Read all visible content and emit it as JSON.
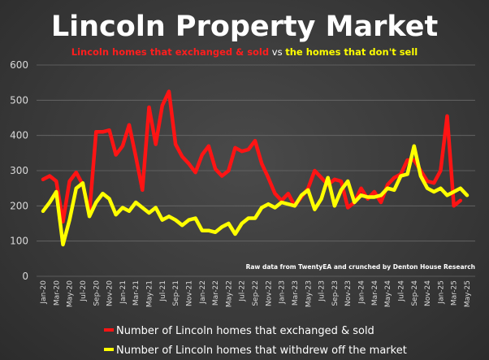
{
  "chart_data": {
    "type": "line",
    "title": "Lincoln Property Market",
    "subtitle": {
      "part1": "Lincoln homes that exchanged & sold",
      "part2": " vs ",
      "part3": "the homes that don't sell"
    },
    "credit": "Raw data from TwentyEA and crunched by Denton House Research",
    "ylim": [
      0,
      600
    ],
    "yticks": [
      "0",
      "100",
      "200",
      "300",
      "400",
      "500",
      "600"
    ],
    "x_tick_labels": [
      "Jan-20",
      "Mar-20",
      "May-20",
      "Jul-20",
      "Sep-20",
      "Nov-20",
      "Jan-21",
      "Mar-21",
      "May-21",
      "Jul-21",
      "Sep-21",
      "Nov-21",
      "Jan-22",
      "Mar-22",
      "May-22",
      "Jul-22",
      "Sep-22",
      "Nov-22",
      "Jan-23",
      "Mar-23",
      "May-23",
      "Jul-23",
      "Sep-23",
      "Nov-23",
      "Jan-24",
      "Mar-24",
      "May-24",
      "Jul-24",
      "Sep-24",
      "Nov-24",
      "Jan-25",
      "Mar-25",
      "May-25"
    ],
    "series": [
      {
        "name": "Number of Lincoln homes that exchanged & sold",
        "color": "#ff1414",
        "values": [
          275,
          285,
          270,
          155,
          270,
          295,
          260,
          180,
          410,
          410,
          415,
          345,
          370,
          430,
          340,
          245,
          480,
          375,
          485,
          525,
          375,
          340,
          320,
          295,
          345,
          370,
          305,
          285,
          300,
          365,
          355,
          360,
          385,
          320,
          280,
          235,
          215,
          235,
          200,
          225,
          250,
          300,
          280,
          260,
          275,
          270,
          195,
          210,
          250,
          220,
          240,
          210,
          260,
          280,
          290,
          330,
          330,
          300,
          270,
          265,
          300,
          455,
          200,
          215
        ]
      },
      {
        "name": "Number of Lincoln homes that withdrew off the market",
        "color": "#ffff00",
        "values": [
          185,
          210,
          240,
          90,
          160,
          250,
          265,
          170,
          210,
          235,
          220,
          175,
          195,
          185,
          210,
          195,
          180,
          195,
          160,
          170,
          160,
          145,
          160,
          165,
          130,
          130,
          125,
          140,
          150,
          120,
          150,
          165,
          165,
          195,
          205,
          195,
          210,
          205,
          200,
          230,
          245,
          190,
          220,
          280,
          200,
          245,
          270,
          210,
          230,
          225,
          225,
          230,
          250,
          245,
          285,
          290,
          370,
          285,
          250,
          240,
          250,
          230,
          240,
          250,
          230
        ]
      }
    ],
    "legend_position": "bottom",
    "grid": true
  }
}
